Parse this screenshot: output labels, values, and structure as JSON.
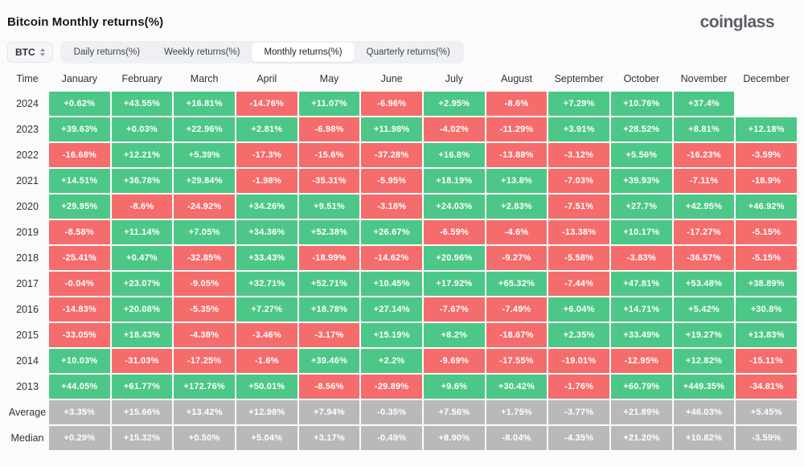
{
  "header": {
    "title": "Bitcoin Monthly returns(%)",
    "logo": "coinglass"
  },
  "controls": {
    "symbol_select": {
      "value": "BTC",
      "icon": "select-up-down-arrows"
    },
    "tabs": [
      {
        "label": "Daily returns(%)",
        "active": false
      },
      {
        "label": "Weekly returns(%)",
        "active": false
      },
      {
        "label": "Monthly returns(%)",
        "active": true
      },
      {
        "label": "Quarterly returns(%)",
        "active": false
      }
    ]
  },
  "chart_data": {
    "type": "heatmap",
    "title": "Bitcoin Monthly returns(%)",
    "legend_position": "none",
    "colors": {
      "positive": "#4cc787",
      "negative": "#f56c6c",
      "neutral": "#b9b9b9"
    },
    "columns": [
      "Time",
      "January",
      "February",
      "March",
      "April",
      "May",
      "June",
      "July",
      "August",
      "September",
      "October",
      "November",
      "December"
    ],
    "rows": [
      {
        "label": "2024",
        "kind": "year",
        "values": [
          "+0.62%",
          "+43.55%",
          "+16.81%",
          "-14.76%",
          "+11.07%",
          "-6.96%",
          "+2.95%",
          "-8.6%",
          "+7.29%",
          "+10.76%",
          "+37.4%",
          ""
        ]
      },
      {
        "label": "2023",
        "kind": "year",
        "values": [
          "+39.63%",
          "+0.03%",
          "+22.96%",
          "+2.81%",
          "-6.98%",
          "+11.98%",
          "-4.02%",
          "-11.29%",
          "+3.91%",
          "+28.52%",
          "+8.81%",
          "+12.18%"
        ]
      },
      {
        "label": "2022",
        "kind": "year",
        "values": [
          "-16.68%",
          "+12.21%",
          "+5.39%",
          "-17.3%",
          "-15.6%",
          "-37.28%",
          "+16.8%",
          "-13.88%",
          "-3.12%",
          "+5.56%",
          "-16.23%",
          "-3.59%"
        ]
      },
      {
        "label": "2021",
        "kind": "year",
        "values": [
          "+14.51%",
          "+36.78%",
          "+29.84%",
          "-1.98%",
          "-35.31%",
          "-5.95%",
          "+18.19%",
          "+13.8%",
          "-7.03%",
          "+39.93%",
          "-7.11%",
          "-18.9%"
        ]
      },
      {
        "label": "2020",
        "kind": "year",
        "values": [
          "+29.95%",
          "-8.6%",
          "-24.92%",
          "+34.26%",
          "+9.51%",
          "-3.18%",
          "+24.03%",
          "+2.83%",
          "-7.51%",
          "+27.7%",
          "+42.95%",
          "+46.92%"
        ]
      },
      {
        "label": "2019",
        "kind": "year",
        "values": [
          "-8.58%",
          "+11.14%",
          "+7.05%",
          "+34.36%",
          "+52.38%",
          "+26.67%",
          "-6.59%",
          "-4.6%",
          "-13.38%",
          "+10.17%",
          "-17.27%",
          "-5.15%"
        ]
      },
      {
        "label": "2018",
        "kind": "year",
        "values": [
          "-25.41%",
          "+0.47%",
          "-32.85%",
          "+33.43%",
          "-18.99%",
          "-14.62%",
          "+20.96%",
          "-9.27%",
          "-5.58%",
          "-3.83%",
          "-36.57%",
          "-5.15%"
        ]
      },
      {
        "label": "2017",
        "kind": "year",
        "values": [
          "-0.04%",
          "+23.07%",
          "-9.05%",
          "+32.71%",
          "+52.71%",
          "+10.45%",
          "+17.92%",
          "+65.32%",
          "-7.44%",
          "+47.81%",
          "+53.48%",
          "+38.89%"
        ]
      },
      {
        "label": "2016",
        "kind": "year",
        "values": [
          "-14.83%",
          "+20.08%",
          "-5.35%",
          "+7.27%",
          "+18.78%",
          "+27.14%",
          "-7.67%",
          "-7.49%",
          "+6.04%",
          "+14.71%",
          "+5.42%",
          "+30.8%"
        ]
      },
      {
        "label": "2015",
        "kind": "year",
        "values": [
          "-33.05%",
          "+18.43%",
          "-4.38%",
          "-3.46%",
          "-3.17%",
          "+15.19%",
          "+8.2%",
          "-18.67%",
          "+2.35%",
          "+33.49%",
          "+19.27%",
          "+13.83%"
        ]
      },
      {
        "label": "2014",
        "kind": "year",
        "values": [
          "+10.03%",
          "-31.03%",
          "-17.25%",
          "-1.6%",
          "+39.46%",
          "+2.2%",
          "-9.69%",
          "-17.55%",
          "-19.01%",
          "-12.95%",
          "+12.82%",
          "-15.11%"
        ]
      },
      {
        "label": "2013",
        "kind": "year",
        "values": [
          "+44.05%",
          "+61.77%",
          "+172.76%",
          "+50.01%",
          "-8.56%",
          "-29.89%",
          "+9.6%",
          "+30.42%",
          "-1.76%",
          "+60.79%",
          "+449.35%",
          "-34.81%"
        ]
      },
      {
        "label": "Average",
        "kind": "stat",
        "values": [
          "+3.35%",
          "+15.66%",
          "+13.42%",
          "+12.98%",
          "+7.94%",
          "-0.35%",
          "+7.56%",
          "+1.75%",
          "-3.77%",
          "+21.89%",
          "+46.03%",
          "+5.45%"
        ]
      },
      {
        "label": "Median",
        "kind": "stat",
        "values": [
          "+0.29%",
          "+15.32%",
          "+0.50%",
          "+5.04%",
          "+3.17%",
          "-0.49%",
          "+8.90%",
          "-8.04%",
          "-4.35%",
          "+21.20%",
          "+10.82%",
          "-3.59%"
        ]
      }
    ]
  }
}
